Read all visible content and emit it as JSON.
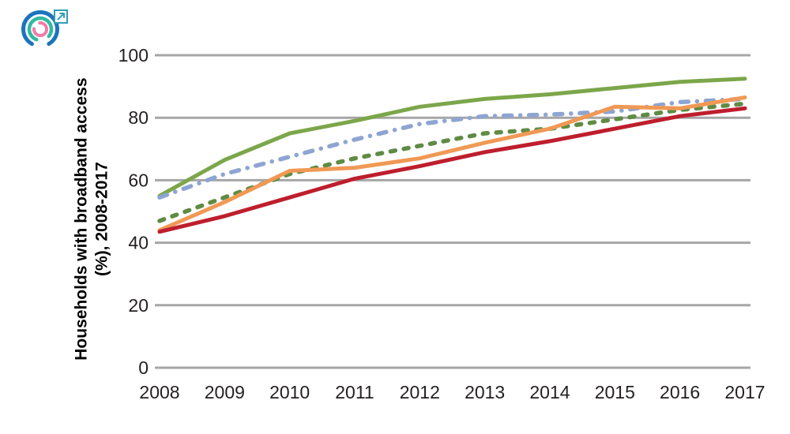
{
  "logo": {
    "type": "circular-arcs-logo",
    "colors": {
      "outer_arc": "#1C75BC",
      "middle_arc": "#31B9A2",
      "inner_arc": "#F17CA7",
      "external_link": "#2E9FB5"
    }
  },
  "y_axis_title": {
    "line1": "Households with broadband access",
    "line2": "(%), 2008-2017"
  },
  "chart_data": {
    "type": "line",
    "title": "",
    "xlabel": "",
    "ylabel": "Households with broadband access (%), 2008-2017",
    "x": [
      2008,
      2009,
      2010,
      2011,
      2012,
      2013,
      2014,
      2015,
      2016,
      2017
    ],
    "yticks": [
      0,
      20,
      40,
      60,
      80,
      100
    ],
    "ylim": [
      0,
      100
    ],
    "grid": "horizontal",
    "legend_position": "none",
    "gridline_color": "#A6A6A6",
    "text_color": "#231F20",
    "series": [
      {
        "name": "green-solid",
        "color": "#7CA64A",
        "dash": "solid",
        "values": [
          55,
          66.5,
          75,
          79,
          83.5,
          86,
          87.5,
          89.5,
          91.5,
          92.5
        ]
      },
      {
        "name": "blue-dash-dot",
        "color": "#8EA5D2",
        "dash": "dash-dot",
        "values": [
          54.5,
          62,
          67.5,
          73,
          78,
          80.5,
          81,
          82,
          85,
          86
        ]
      },
      {
        "name": "green-dashed",
        "color": "#5F8B44",
        "dash": "dashed",
        "values": [
          47,
          54.5,
          62,
          67,
          71,
          75,
          76.5,
          79.5,
          82.5,
          84.5
        ]
      },
      {
        "name": "orange-solid",
        "color": "#F09955",
        "dash": "solid",
        "values": [
          44,
          53,
          63,
          64,
          67,
          72,
          76.5,
          83.5,
          83,
          86.5
        ]
      },
      {
        "name": "red-solid",
        "color": "#BE1E2D",
        "dash": "solid",
        "values": [
          43.5,
          48.5,
          54.5,
          60.5,
          64.5,
          69,
          72.5,
          76.5,
          80.5,
          83
        ]
      }
    ]
  }
}
